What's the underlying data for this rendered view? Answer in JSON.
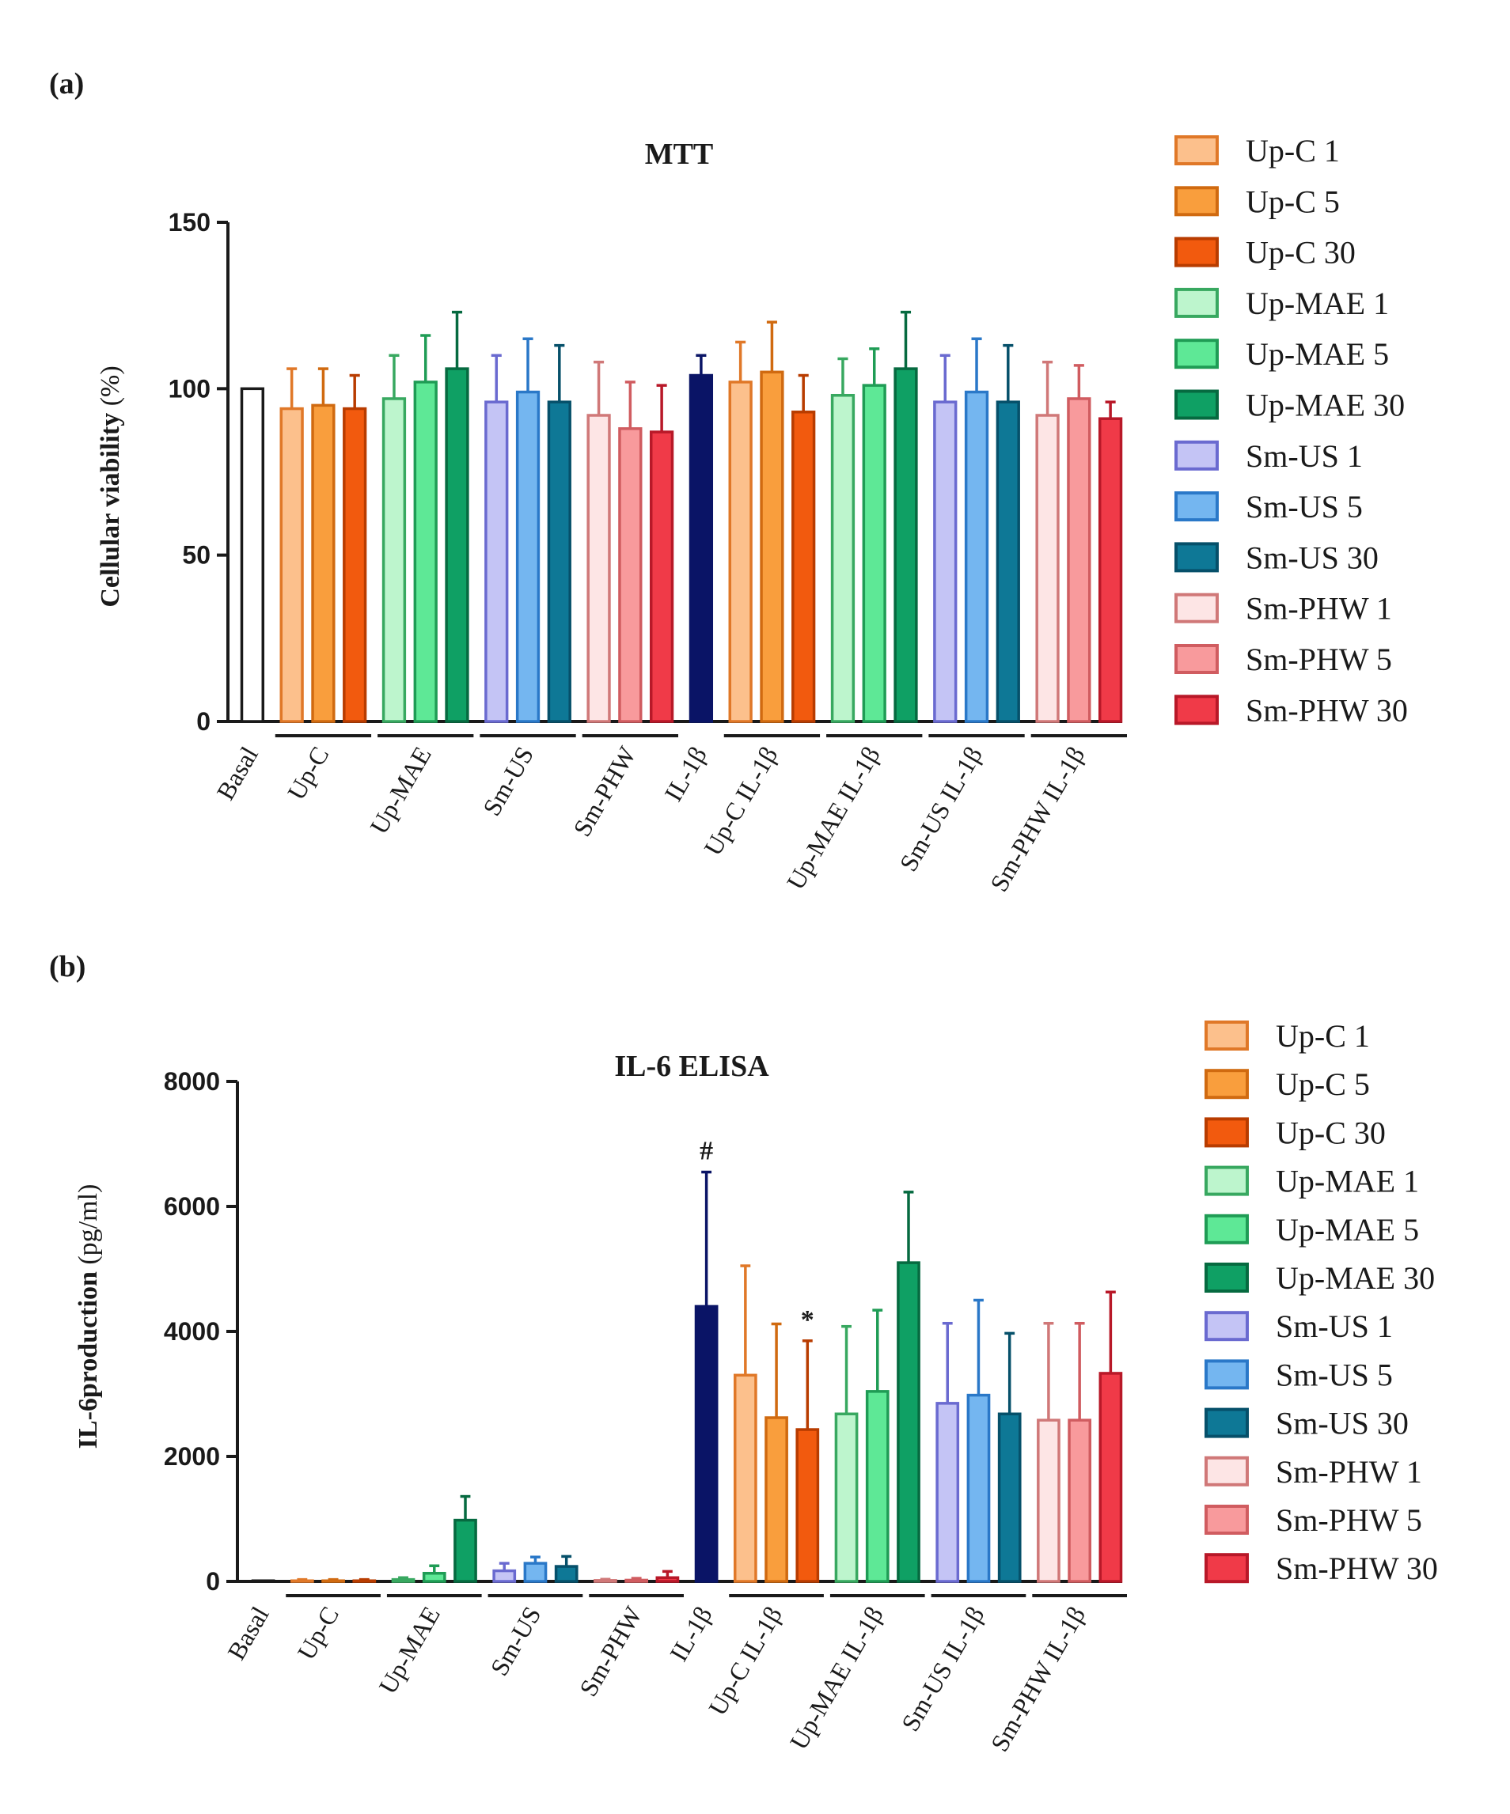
{
  "chart_data": [
    {
      "type": "bar",
      "panel_label": "(a)",
      "title": "MTT",
      "ylabel": "Cellular viability",
      "ylabel_unit": "(%)",
      "xlabel": "",
      "ylim": [
        0,
        150
      ],
      "yticks": [
        "0",
        "50",
        "100",
        "150"
      ],
      "group_labels": [
        "Basal",
        "Up-C",
        "Up-MAE",
        "Sm-US",
        "Sm-PHW",
        "IL-1β",
        "Up-C IL-1β",
        "Up-MAE IL-1β",
        "Sm-US IL-1β",
        "Sm-PHW IL-1β"
      ],
      "legend": [
        "Up-C 1",
        "Up-C 5",
        "Up-C 30",
        "Up-MAE 1",
        "Up-MAE 5",
        "Up-MAE 30",
        "Sm-US 1",
        "Sm-US 5",
        "Sm-US 30",
        "Sm-PHW 1",
        "Sm-PHW 5",
        "Sm-PHW 30"
      ],
      "bars": [
        {
          "group": "Basal",
          "series": "Basal",
          "value": 100,
          "error": 0
        },
        {
          "group": "Up-C",
          "series": "Up-C 1",
          "value": 94,
          "error": 12
        },
        {
          "group": "Up-C",
          "series": "Up-C 5",
          "value": 95,
          "error": 11
        },
        {
          "group": "Up-C",
          "series": "Up-C 30",
          "value": 94,
          "error": 10
        },
        {
          "group": "Up-MAE",
          "series": "Up-MAE 1",
          "value": 97,
          "error": 13
        },
        {
          "group": "Up-MAE",
          "series": "Up-MAE 5",
          "value": 102,
          "error": 14
        },
        {
          "group": "Up-MAE",
          "series": "Up-MAE 30",
          "value": 106,
          "error": 17
        },
        {
          "group": "Sm-US",
          "series": "Sm-US 1",
          "value": 96,
          "error": 14
        },
        {
          "group": "Sm-US",
          "series": "Sm-US 5",
          "value": 99,
          "error": 16
        },
        {
          "group": "Sm-US",
          "series": "Sm-US 30",
          "value": 96,
          "error": 17
        },
        {
          "group": "Sm-PHW",
          "series": "Sm-PHW 1",
          "value": 92,
          "error": 16
        },
        {
          "group": "Sm-PHW",
          "series": "Sm-PHW 5",
          "value": 88,
          "error": 14
        },
        {
          "group": "Sm-PHW",
          "series": "Sm-PHW 30",
          "value": 87,
          "error": 14
        },
        {
          "group": "IL-1β",
          "series": "IL-1β",
          "value": 104,
          "error": 6
        },
        {
          "group": "Up-C IL-1β",
          "series": "Up-C 1",
          "value": 102,
          "error": 12
        },
        {
          "group": "Up-C IL-1β",
          "series": "Up-C 5",
          "value": 105,
          "error": 15
        },
        {
          "group": "Up-C IL-1β",
          "series": "Up-C 30",
          "value": 93,
          "error": 11
        },
        {
          "group": "Up-MAE IL-1β",
          "series": "Up-MAE 1",
          "value": 98,
          "error": 11
        },
        {
          "group": "Up-MAE IL-1β",
          "series": "Up-MAE 5",
          "value": 101,
          "error": 11
        },
        {
          "group": "Up-MAE IL-1β",
          "series": "Up-MAE 30",
          "value": 106,
          "error": 17
        },
        {
          "group": "Sm-US IL-1β",
          "series": "Sm-US 1",
          "value": 96,
          "error": 14
        },
        {
          "group": "Sm-US IL-1β",
          "series": "Sm-US 5",
          "value": 99,
          "error": 16
        },
        {
          "group": "Sm-US IL-1β",
          "series": "Sm-US 30",
          "value": 96,
          "error": 17
        },
        {
          "group": "Sm-PHW IL-1β",
          "series": "Sm-PHW 1",
          "value": 92,
          "error": 16
        },
        {
          "group": "Sm-PHW IL-1β",
          "series": "Sm-PHW 5",
          "value": 97,
          "error": 10
        },
        {
          "group": "Sm-PHW IL-1β",
          "series": "Sm-PHW 30",
          "value": 91,
          "error": 5
        }
      ],
      "annotations": []
    },
    {
      "type": "bar",
      "panel_label": "(b)",
      "title": "IL-6 ELISA",
      "ylabel": "IL-6production",
      "ylabel_unit": "(pg/ml)",
      "xlabel": "",
      "ylim": [
        0,
        8000
      ],
      "yticks": [
        "0",
        "2000",
        "4000",
        "6000",
        "8000"
      ],
      "group_labels": [
        "Basal",
        "Up-C",
        "Up-MAE",
        "Sm-US",
        "Sm-PHW",
        "IL-1β",
        "Up-C IL-1β",
        "Up-MAE IL-1β",
        "Sm-US IL-1β",
        "Sm-PHW IL-1β"
      ],
      "legend": [
        "Up-C 1",
        "Up-C 5",
        "Up-C 30",
        "Up-MAE 1",
        "Up-MAE 5",
        "Up-MAE 30",
        "Sm-US 1",
        "Sm-US 5",
        "Sm-US 30",
        "Sm-PHW 1",
        "Sm-PHW 5",
        "Sm-PHW 30"
      ],
      "bars": [
        {
          "group": "Basal",
          "series": "Basal",
          "value": 10,
          "error": 0
        },
        {
          "group": "Up-C",
          "series": "Up-C 1",
          "value": 10,
          "error": 20
        },
        {
          "group": "Up-C",
          "series": "Up-C 5",
          "value": 10,
          "error": 20
        },
        {
          "group": "Up-C",
          "series": "Up-C 30",
          "value": 10,
          "error": 20
        },
        {
          "group": "Up-MAE",
          "series": "Up-MAE 1",
          "value": 30,
          "error": 30
        },
        {
          "group": "Up-MAE",
          "series": "Up-MAE 5",
          "value": 130,
          "error": 120
        },
        {
          "group": "Up-MAE",
          "series": "Up-MAE 30",
          "value": 980,
          "error": 380
        },
        {
          "group": "Sm-US",
          "series": "Sm-US 1",
          "value": 170,
          "error": 120
        },
        {
          "group": "Sm-US",
          "series": "Sm-US 5",
          "value": 290,
          "error": 100
        },
        {
          "group": "Sm-US",
          "series": "Sm-US 30",
          "value": 240,
          "error": 160
        },
        {
          "group": "Sm-PHW",
          "series": "Sm-PHW 1",
          "value": 15,
          "error": 20
        },
        {
          "group": "Sm-PHW",
          "series": "Sm-PHW 5",
          "value": 20,
          "error": 30
        },
        {
          "group": "Sm-PHW",
          "series": "Sm-PHW 30",
          "value": 60,
          "error": 100
        },
        {
          "group": "IL-1β",
          "series": "IL-1β",
          "value": 4400,
          "error": 2150
        },
        {
          "group": "Up-C IL-1β",
          "series": "Up-C 1",
          "value": 3300,
          "error": 1750
        },
        {
          "group": "Up-C IL-1β",
          "series": "Up-C 5",
          "value": 2620,
          "error": 1500
        },
        {
          "group": "Up-C IL-1β",
          "series": "Up-C 30",
          "value": 2430,
          "error": 1420
        },
        {
          "group": "Up-MAE IL-1β",
          "series": "Up-MAE 1",
          "value": 2680,
          "error": 1400
        },
        {
          "group": "Up-MAE IL-1β",
          "series": "Up-MAE 5",
          "value": 3040,
          "error": 1300
        },
        {
          "group": "Up-MAE IL-1β",
          "series": "Up-MAE 30",
          "value": 5100,
          "error": 1130
        },
        {
          "group": "Sm-US IL-1β",
          "series": "Sm-US 1",
          "value": 2850,
          "error": 1280
        },
        {
          "group": "Sm-US IL-1β",
          "series": "Sm-US 5",
          "value": 2980,
          "error": 1520
        },
        {
          "group": "Sm-US IL-1β",
          "series": "Sm-US 30",
          "value": 2680,
          "error": 1290
        },
        {
          "group": "Sm-PHW IL-1β",
          "series": "Sm-PHW 1",
          "value": 2580,
          "error": 1550
        },
        {
          "group": "Sm-PHW IL-1β",
          "series": "Sm-PHW 5",
          "value": 2580,
          "error": 1550
        },
        {
          "group": "Sm-PHW IL-1β",
          "series": "Sm-PHW 30",
          "value": 3330,
          "error": 1300
        }
      ],
      "annotations": [
        {
          "text": "#",
          "group": "IL-1β",
          "series": "IL-1β"
        },
        {
          "text": "*",
          "group": "Up-C IL-1β",
          "series": "Up-C 30"
        }
      ]
    }
  ],
  "colors": {
    "Basal": {
      "fill": "#ffffff",
      "stroke": "#1a1a1a"
    },
    "IL-1β": {
      "fill": "#0a1466",
      "stroke": "#0a1466"
    },
    "Up-C 1": {
      "fill": "#fcc08c",
      "stroke": "#e07828"
    },
    "Up-C 5": {
      "fill": "#f99e3d",
      "stroke": "#d06a10"
    },
    "Up-C 30": {
      "fill": "#f25a0e",
      "stroke": "#b83c00"
    },
    "Up-MAE 1": {
      "fill": "#bdf5cd",
      "stroke": "#38a860"
    },
    "Up-MAE 5": {
      "fill": "#5ee896",
      "stroke": "#1f9c55"
    },
    "Up-MAE 30": {
      "fill": "#0fa064",
      "stroke": "#066a40"
    },
    "Sm-US 1": {
      "fill": "#c4c4f5",
      "stroke": "#6a6ad0"
    },
    "Sm-US 5": {
      "fill": "#74b6f0",
      "stroke": "#2a78c8"
    },
    "Sm-US 30": {
      "fill": "#0e7896",
      "stroke": "#06506a"
    },
    "Sm-PHW 1": {
      "fill": "#fde5e5",
      "stroke": "#d07878"
    },
    "Sm-PHW 5": {
      "fill": "#f89a9c",
      "stroke": "#d05c60"
    },
    "Sm-PHW 30": {
      "fill": "#f03a48",
      "stroke": "#b81828"
    },
    "axis": "#1a1a1a"
  }
}
